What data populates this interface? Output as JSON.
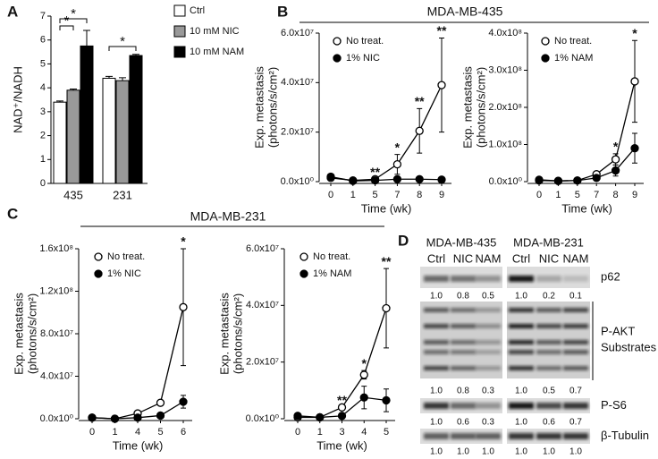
{
  "panel_letters": [
    "A",
    "B",
    "C",
    "D"
  ],
  "group_titles": [
    "MDA-MB-435",
    "MDA-MB-231"
  ],
  "chart_data": [
    {
      "type": "bar",
      "ylabel": "NAD⁺/NADH",
      "categories": [
        "435",
        "231"
      ],
      "ylim": [
        0,
        7
      ],
      "yticks": [
        0,
        1,
        2,
        3,
        4,
        5,
        6,
        7
      ],
      "legend": "right",
      "series": [
        {
          "name": "Ctrl",
          "color": "#ffffff",
          "values": [
            3.4,
            4.4
          ],
          "errors": [
            0.05,
            0.08
          ]
        },
        {
          "name": "10 mM NIC",
          "color": "#999999",
          "values": [
            3.9,
            4.3
          ],
          "errors": [
            0.05,
            0.12
          ]
        },
        {
          "name": "10 mM NAM",
          "color": "#000000",
          "values": [
            5.75,
            5.35
          ],
          "errors": [
            0.65,
            0.05
          ]
        }
      ],
      "annotations": [
        "*",
        "*",
        "*"
      ]
    },
    {
      "type": "line",
      "xlabel": "Time (wk)",
      "ylabel": [
        "Exp. metastasis",
        "(photons/s/cm²)"
      ],
      "categories": [
        "0",
        "1",
        "5",
        "7",
        "8",
        "9"
      ],
      "ylim": [
        0,
        60000000
      ],
      "yticks": [
        {
          "value": 0,
          "label": "0.0x10⁰"
        },
        {
          "value": 20000000,
          "label": "2.0x10⁷"
        },
        {
          "value": 40000000,
          "label": "4.0x10⁷"
        },
        {
          "value": 60000000,
          "label": "6.0x10⁷"
        }
      ],
      "legend": "upper left",
      "series": [
        {
          "name": "No treat.",
          "color": "#ffffff",
          "values": [
            1500000,
            500000,
            1000000,
            7000000,
            20500000,
            39000000
          ],
          "errors": [
            null,
            null,
            null,
            4000000,
            9000000,
            19000000
          ]
        },
        {
          "name": "1% NIC",
          "color": "#000000",
          "values": [
            2000000,
            300000,
            500000,
            1000000,
            1000000,
            800000
          ],
          "errors": [
            null,
            null,
            null,
            null,
            null,
            null
          ]
        }
      ],
      "annotations": [
        null,
        null,
        "**",
        "*",
        "**",
        "**"
      ]
    },
    {
      "type": "line",
      "xlabel": "Time (wk)",
      "ylabel": [
        "Exp. metastasis",
        "(photons/s/cm²)"
      ],
      "categories": [
        "0",
        "1",
        "5",
        "7",
        "8",
        "9"
      ],
      "ylim": [
        0,
        400000000
      ],
      "yticks": [
        {
          "value": 0,
          "label": "0.0x10⁰"
        },
        {
          "value": 100000000,
          "label": "1.0x10⁸"
        },
        {
          "value": 200000000,
          "label": "2.0x10⁸"
        },
        {
          "value": 300000000,
          "label": "3.0x10⁸"
        },
        {
          "value": 400000000,
          "label": "4.0x10⁸"
        }
      ],
      "legend": "upper left",
      "series": [
        {
          "name": "No treat.",
          "color": "#ffffff",
          "values": [
            5000000,
            2000000,
            3000000,
            20000000,
            60000000,
            270000000
          ],
          "errors": [
            null,
            null,
            null,
            null,
            15000000,
            110000000
          ]
        },
        {
          "name": "1% NAM",
          "color": "#000000",
          "values": [
            3000000,
            2000000,
            3000000,
            10000000,
            30000000,
            90000000
          ],
          "errors": [
            null,
            null,
            null,
            null,
            15000000,
            40000000
          ]
        }
      ],
      "annotations": [
        null,
        null,
        null,
        null,
        "*",
        "*"
      ]
    },
    {
      "type": "line",
      "xlabel": "Time (wk)",
      "ylabel": [
        "Exp. metastasis",
        "(photons/s/cm²)"
      ],
      "categories": [
        "0",
        "1",
        "4",
        "5",
        "6"
      ],
      "ylim": [
        0,
        160000000
      ],
      "yticks": [
        {
          "value": 0,
          "label": "0.0x10⁰"
        },
        {
          "value": 40000000,
          "label": "4.0x10⁷"
        },
        {
          "value": 80000000,
          "label": "8.0x10⁷"
        },
        {
          "value": 120000000,
          "label": "1.2x10⁸"
        },
        {
          "value": 160000000,
          "label": "1.6x10⁸"
        }
      ],
      "legend": "upper left",
      "series": [
        {
          "name": "No treat.",
          "color": "#ffffff",
          "values": [
            1000000,
            0,
            5000000,
            15000000,
            105000000
          ],
          "errors": [
            null,
            null,
            null,
            null,
            55000000
          ]
        },
        {
          "name": "1% NIC",
          "color": "#000000",
          "values": [
            1000000,
            0,
            1000000,
            3000000,
            16000000
          ],
          "errors": [
            null,
            null,
            null,
            null,
            6000000
          ]
        }
      ],
      "annotations": [
        null,
        null,
        null,
        null,
        "*"
      ]
    },
    {
      "type": "line",
      "xlabel": "Time (wk)",
      "ylabel": [
        "Exp. metastasis",
        "(photons/s/cm²)"
      ],
      "categories": [
        "0",
        "1",
        "3",
        "4",
        "5"
      ],
      "ylim": [
        0,
        60000000
      ],
      "yticks": [
        {
          "value": 0,
          "label": "0.0x10⁰"
        },
        {
          "value": 20000000,
          "label": "2.0x10⁷"
        },
        {
          "value": 40000000,
          "label": "4.0x10⁷"
        },
        {
          "value": 60000000,
          "label": "6.0x10⁷"
        }
      ],
      "legend": "upper left",
      "series": [
        {
          "name": "No treat.",
          "color": "#ffffff",
          "values": [
            500000,
            500000,
            4000000,
            15500000,
            39000000
          ],
          "errors": [
            null,
            null,
            null,
            1500000,
            14000000
          ]
        },
        {
          "name": "1% NAM",
          "color": "#000000",
          "values": [
            1000000,
            500000,
            1000000,
            7500000,
            6500000
          ],
          "errors": [
            null,
            null,
            null,
            4000000,
            4000000
          ]
        }
      ],
      "annotations": [
        null,
        null,
        "**",
        "*",
        "**"
      ]
    }
  ],
  "blot": {
    "cell_lines": [
      "MDA-MB-435",
      "MDA-MB-231"
    ],
    "lanes": [
      [
        "Ctrl",
        "NIC",
        "NAM"
      ],
      [
        "Ctrl",
        "NIC",
        "NAM"
      ]
    ],
    "rows": [
      {
        "label": [
          "p62"
        ],
        "quant": [
          [
            "1.0",
            "0.8",
            "0.5"
          ],
          [
            "1.0",
            "0.2",
            "0.1"
          ]
        ]
      },
      {
        "label": [
          "P-AKT",
          "Substrates"
        ],
        "quant": [
          [
            "1.0",
            "0.8",
            "0.3"
          ],
          [
            "1.0",
            "0.5",
            "0.7"
          ]
        ]
      },
      {
        "label": [
          "P-S6"
        ],
        "quant": [
          [
            "1.0",
            "0.6",
            "0.3"
          ],
          [
            "1.0",
            "0.6",
            "0.7"
          ]
        ]
      },
      {
        "label": [
          "β-Tubulin"
        ],
        "quant": [
          [
            "1.0",
            "1.0",
            "1.0"
          ],
          [
            "1.0",
            "1.0",
            "1.0"
          ]
        ]
      }
    ]
  }
}
